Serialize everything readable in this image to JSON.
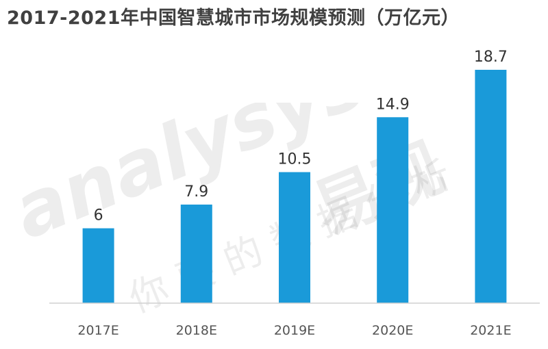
{
  "chart_data": {
    "type": "bar",
    "title": "2017-2021年中国智慧城市市场规模预测（万亿元）",
    "categories": [
      "2017E",
      "2018E",
      "2019E",
      "2020E",
      "2021E"
    ],
    "values": [
      6,
      7.9,
      10.5,
      14.9,
      18.7
    ],
    "xlabel": "",
    "ylabel": "",
    "ylim": [
      0,
      18.7
    ],
    "grid": false,
    "legend": "none",
    "colors": {
      "bar": "#1a9ad9",
      "axis": "#d0d0d0"
    }
  },
  "watermark": {
    "logo": "analysys",
    "brand": "易观",
    "slogan": "你要的数据分析"
  }
}
